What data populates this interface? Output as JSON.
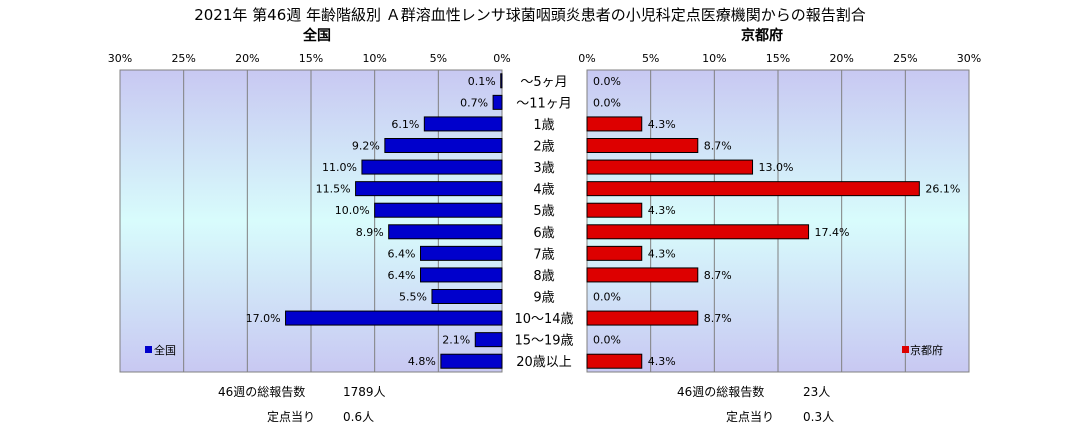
{
  "title": "2021年 第46週 年齢階級別 Ａ群溶血性レンサ球菌咽頭炎患者の小児科定点医療機関からの報告割合",
  "colors": {
    "left_bar": "#0000cc",
    "right_bar": "#dd0000",
    "bg_top": "#c8c8f2",
    "bg_middle": "#d8fcfc",
    "bg_bottom": "#c8c8f2"
  },
  "chart_data": [
    {
      "type": "bar",
      "orientation": "horizontal",
      "direction": "right-to-left",
      "title": "全国",
      "categories": [
        "〜5ヶ月",
        "〜11ヶ月",
        "1歳",
        "2歳",
        "3歳",
        "4歳",
        "5歳",
        "6歳",
        "7歳",
        "8歳",
        "9歳",
        "10〜14歳",
        "15〜19歳",
        "20歳以上"
      ],
      "values": [
        0.1,
        0.7,
        6.1,
        9.2,
        11.0,
        11.5,
        10.0,
        8.9,
        6.4,
        6.4,
        5.5,
        17.0,
        2.1,
        4.8
      ],
      "labels": [
        "0.1%",
        "0.7%",
        "6.1%",
        "9.2%",
        "11.0%",
        "11.5%",
        "10.0%",
        "8.9%",
        "6.4%",
        "6.4%",
        "5.5%",
        "17.0%",
        "2.1%",
        "4.8%"
      ],
      "xlim": [
        0,
        30
      ],
      "xticks": [
        "0%",
        "5%",
        "10%",
        "15%",
        "20%",
        "25%",
        "30%"
      ],
      "grid": true,
      "legend": {
        "position": "bottom-left",
        "label": "全国"
      }
    },
    {
      "type": "bar",
      "orientation": "horizontal",
      "direction": "left-to-right",
      "title": "京都府",
      "categories": [
        "〜5ヶ月",
        "〜11ヶ月",
        "1歳",
        "2歳",
        "3歳",
        "4歳",
        "5歳",
        "6歳",
        "7歳",
        "8歳",
        "9歳",
        "10〜14歳",
        "15〜19歳",
        "20歳以上"
      ],
      "values": [
        0.0,
        0.0,
        4.3,
        8.7,
        13.0,
        26.1,
        4.3,
        17.4,
        4.3,
        8.7,
        0.0,
        8.7,
        0.0,
        4.3
      ],
      "labels": [
        "0.0%",
        "0.0%",
        "4.3%",
        "8.7%",
        "13.0%",
        "26.1%",
        "4.3%",
        "17.4%",
        "4.3%",
        "8.7%",
        "0.0%",
        "8.7%",
        "0.0%",
        "4.3%"
      ],
      "xlim": [
        0,
        30
      ],
      "xticks": [
        "0%",
        "5%",
        "10%",
        "15%",
        "20%",
        "25%",
        "30%"
      ],
      "grid": true,
      "legend": {
        "position": "bottom-right",
        "label": "京都府"
      }
    }
  ],
  "footer": {
    "national_total_label": "46週の総報告数",
    "national_total_value": "1789人",
    "national_per_label": "定点当り",
    "national_per_value": "0.6人",
    "kyoto_total_label": "46週の総報告数",
    "kyoto_total_value": "23人",
    "kyoto_per_label": "定点当り",
    "kyoto_per_value": "0.3人"
  }
}
